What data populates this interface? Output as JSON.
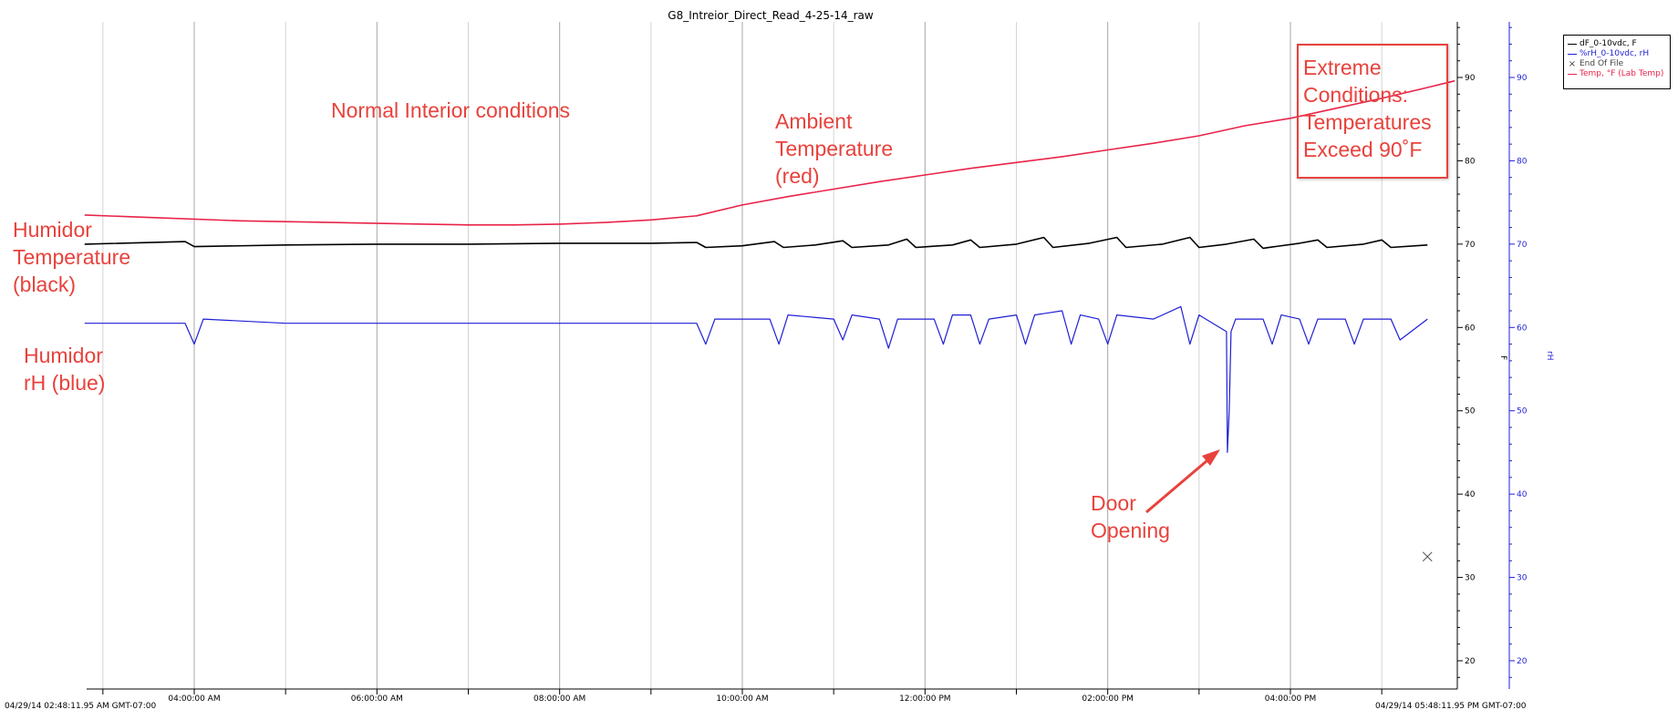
{
  "chart_data": {
    "type": "line",
    "title": "G8_Intreior_Direct_Read_4-25-14_raw",
    "x_start_stamp": "04/29/14 02:48:11.95 AM GMT-07:00",
    "x_end_stamp": "04/29/14 05:48:11.95 PM GMT-07:00",
    "x_range_hours": [
      2.8,
      17.8
    ],
    "xticks": [
      {
        "hour": 4,
        "label": "04:00:00 AM"
      },
      {
        "hour": 6,
        "label": "06:00:00 AM"
      },
      {
        "hour": 8,
        "label": "08:00:00 AM"
      },
      {
        "hour": 10,
        "label": "10:00:00 AM"
      },
      {
        "hour": 12,
        "label": "12:00:00 PM"
      },
      {
        "hour": 14,
        "label": "02:00:00 PM"
      },
      {
        "hour": 16,
        "label": "04:00:00 PM"
      }
    ],
    "ylim": [
      16,
      96
    ],
    "yticks": [
      20,
      30,
      40,
      50,
      60,
      70,
      80,
      90
    ],
    "left_axis_label": "F",
    "right_axis_label": "rH",
    "right_axis_color": "#1f1fd6",
    "legend": [
      {
        "label": "dF_0-10vdc, F",
        "color": "#000000",
        "marker": "line"
      },
      {
        "label": "%rH_0-10vdc, rH",
        "color": "#1f1fd6",
        "marker": "line"
      },
      {
        "label": "End Of File",
        "color": "#555555",
        "marker": "x"
      },
      {
        "label": "Temp, °F (Lab Temp)",
        "color": "#e8234a",
        "marker": "line"
      }
    ],
    "series": [
      {
        "name": "Temp, °F (Lab Temp)",
        "color": "#e8234a",
        "x": [
          2.8,
          3.5,
          4.5,
          5.5,
          6.5,
          7.0,
          7.5,
          8.0,
          8.5,
          9.0,
          9.5,
          10.0,
          10.5,
          11.0,
          11.5,
          12.0,
          12.5,
          13.0,
          13.5,
          14.0,
          14.5,
          15.0,
          15.5,
          16.0,
          16.5,
          17.0,
          17.5,
          17.8
        ],
        "y": [
          73.5,
          73.2,
          72.8,
          72.6,
          72.4,
          72.3,
          72.3,
          72.4,
          72.6,
          72.9,
          73.4,
          74.7,
          75.7,
          76.6,
          77.5,
          78.3,
          79.1,
          79.8,
          80.5,
          81.3,
          82.1,
          83.0,
          84.2,
          85.1,
          86.3,
          87.5,
          88.8,
          89.6
        ]
      },
      {
        "name": "dF_0-10vdc, F",
        "color": "#000000",
        "x": [
          2.8,
          3.9,
          4.0,
          5.0,
          6.0,
          7.0,
          8.0,
          9.0,
          9.5,
          9.6,
          10.0,
          10.35,
          10.45,
          10.8,
          11.1,
          11.2,
          11.6,
          11.8,
          11.9,
          12.3,
          12.5,
          12.6,
          13.0,
          13.3,
          13.4,
          13.8,
          14.1,
          14.2,
          14.6,
          14.9,
          15.0,
          15.3,
          15.6,
          15.7,
          16.1,
          16.3,
          16.4,
          16.8,
          17.0,
          17.1,
          17.5
        ],
        "y": [
          70.0,
          70.3,
          69.7,
          69.9,
          70.0,
          70.0,
          70.1,
          70.1,
          70.2,
          69.6,
          69.8,
          70.3,
          69.6,
          69.9,
          70.4,
          69.6,
          69.9,
          70.6,
          69.6,
          69.9,
          70.5,
          69.6,
          70.0,
          70.8,
          69.6,
          70.1,
          70.8,
          69.6,
          70.0,
          70.8,
          69.6,
          70.0,
          70.6,
          69.5,
          70.1,
          70.5,
          69.6,
          70.0,
          70.5,
          69.6,
          69.9
        ]
      },
      {
        "name": "%rH_0-10vdc, rH",
        "color": "#1f1fd6",
        "x": [
          2.8,
          3.9,
          4.0,
          4.1,
          5.0,
          6.0,
          7.0,
          8.0,
          9.0,
          9.5,
          9.6,
          9.7,
          10.3,
          10.4,
          10.5,
          11.0,
          11.1,
          11.2,
          11.5,
          11.6,
          11.7,
          12.1,
          12.2,
          12.3,
          12.5,
          12.6,
          12.7,
          13.0,
          13.1,
          13.2,
          13.5,
          13.6,
          13.7,
          13.9,
          14.0,
          14.1,
          14.5,
          14.8,
          14.9,
          15.0,
          15.3,
          15.31,
          15.33,
          15.35,
          15.4,
          15.7,
          15.8,
          15.9,
          16.1,
          16.2,
          16.3,
          16.6,
          16.7,
          16.8,
          17.1,
          17.2,
          17.5
        ],
        "y": [
          60.5,
          60.5,
          58.0,
          61.0,
          60.5,
          60.5,
          60.5,
          60.5,
          60.5,
          60.5,
          58.0,
          61.0,
          61.0,
          58.0,
          61.5,
          61.0,
          58.5,
          61.5,
          61.0,
          57.5,
          61.0,
          61.0,
          58.0,
          61.5,
          61.5,
          58.0,
          61.0,
          61.5,
          58.0,
          61.5,
          62.0,
          58.0,
          61.5,
          61.0,
          58.0,
          61.5,
          61.0,
          62.5,
          58.0,
          61.5,
          59.5,
          45.0,
          50.0,
          59.5,
          61.0,
          61.0,
          58.0,
          61.5,
          61.0,
          58.0,
          61.0,
          61.0,
          58.0,
          61.0,
          61.0,
          58.5,
          61.0
        ]
      }
    ],
    "end_of_file_marker": {
      "x": 17.5,
      "y": 32.5
    }
  },
  "annotations": {
    "normal": "Normal Interior conditions",
    "ambient": "Ambient\nTemperature\n(red)",
    "extreme": "Extreme\nConditions:\nTemperatures\nExceed 90˚F",
    "humidor_temp": "Humidor\nTemperature\n(black)",
    "humidor_rh": "Humidor\nrH (blue)",
    "door": "Door\nOpening"
  }
}
